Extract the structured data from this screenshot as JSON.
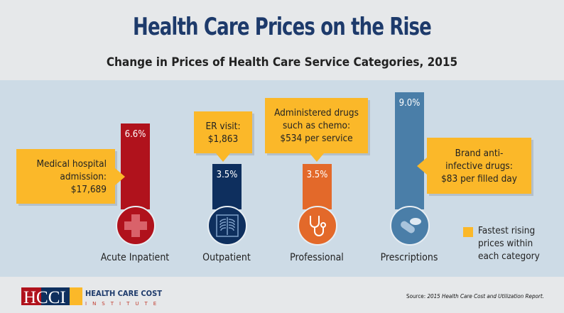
{
  "title": "Health Care Prices on the Rise",
  "subtitle": "Change in Prices of Health Care Service Categories, 2015",
  "chart_data": {
    "type": "bar",
    "title": "Change in Prices of Health Care Service Categories, 2015",
    "categories": [
      "Acute Inpatient",
      "Outpatient",
      "Professional",
      "Prescriptions"
    ],
    "values": [
      6.6,
      3.5,
      3.5,
      9.0
    ],
    "value_labels": [
      "6.6%",
      "3.5%",
      "3.5%",
      "9.0%"
    ],
    "colors": [
      "#b0121c",
      "#0e2f5e",
      "#e3692a",
      "#4a7ea8"
    ],
    "icons": [
      "medical-cross-icon",
      "xray-ribcage-icon",
      "stethoscope-icon",
      "pills-icon"
    ],
    "callouts": [
      {
        "lines": [
          "Medical hospital",
          "admission:",
          "$17,689"
        ]
      },
      {
        "lines": [
          "ER visit:",
          "$1,863"
        ]
      },
      {
        "lines": [
          "Administered drugs",
          "such as chemo:",
          "$534 per service"
        ]
      },
      {
        "lines": [
          "Brand anti-",
          "infective drugs:",
          "$83 per filled day"
        ]
      }
    ],
    "legend": "Fastest rising prices within each category",
    "legend_color": "#fbb829"
  },
  "logo": {
    "letters": "HCCI",
    "line1": "HEALTH CARE COST",
    "line2": "INSTITUTE"
  },
  "source": {
    "prefix": "Source:",
    "text": "2015 Health Care Cost and Utilization Report."
  }
}
